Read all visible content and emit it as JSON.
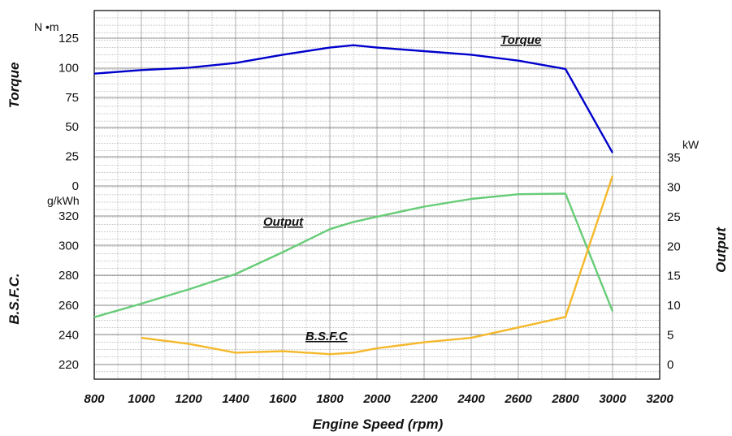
{
  "chart_data": {
    "type": "line",
    "xlabel": "Engine Speed  (rpm)",
    "xlim": [
      800,
      3200
    ],
    "x_ticks": [
      "800",
      "1000",
      "1200",
      "1400",
      "1600",
      "1800",
      "2000",
      "2200",
      "2400",
      "2600",
      "2800",
      "3000",
      "3200"
    ],
    "grid": true,
    "torque_axis": {
      "label": "Torque",
      "unit": "N •m",
      "range": [
        0,
        125
      ],
      "ticks": [
        "0",
        "25",
        "50",
        "75",
        "100",
        "125"
      ]
    },
    "bsfc_axis": {
      "label": "B.S.F.C.",
      "unit": "g/kWh",
      "range": [
        210,
        330
      ],
      "ticks": [
        "220",
        "240",
        "260",
        "280",
        "300",
        "320"
      ]
    },
    "output_axis": {
      "label": "Output",
      "unit": "kW",
      "range": [
        -3,
        40
      ],
      "ticks": [
        "0",
        "5",
        "10",
        "15",
        "20",
        "25",
        "30",
        "35"
      ]
    },
    "series": [
      {
        "name": "Torque",
        "axis": "torque",
        "color": "#0000cc",
        "x": [
          800,
          1000,
          1200,
          1400,
          1600,
          1800,
          1900,
          2000,
          2200,
          2400,
          2600,
          2800,
          3000
        ],
        "y": [
          95,
          98,
          100,
          104,
          111,
          117,
          119,
          117,
          114,
          111,
          106,
          99,
          28
        ]
      },
      {
        "name": "Output",
        "axis": "output",
        "color": "#66cc77",
        "x": [
          800,
          1000,
          1200,
          1400,
          1600,
          1800,
          1900,
          2000,
          2200,
          2400,
          2600,
          2800,
          3000
        ],
        "y": [
          8,
          10.3,
          12.7,
          15.3,
          19,
          22.9,
          24.1,
          25,
          26.7,
          28,
          28.8,
          28.9,
          9
        ]
      },
      {
        "name": "B.S.F.C",
        "axis": "bsfc",
        "color": "#f5b82a",
        "x": [
          1000,
          1200,
          1400,
          1600,
          1800,
          1900,
          2000,
          2200,
          2400,
          2600,
          2800,
          3000
        ],
        "y": [
          238,
          234,
          228,
          229,
          227,
          228,
          231,
          235,
          238,
          245,
          252,
          347
        ]
      }
    ]
  }
}
